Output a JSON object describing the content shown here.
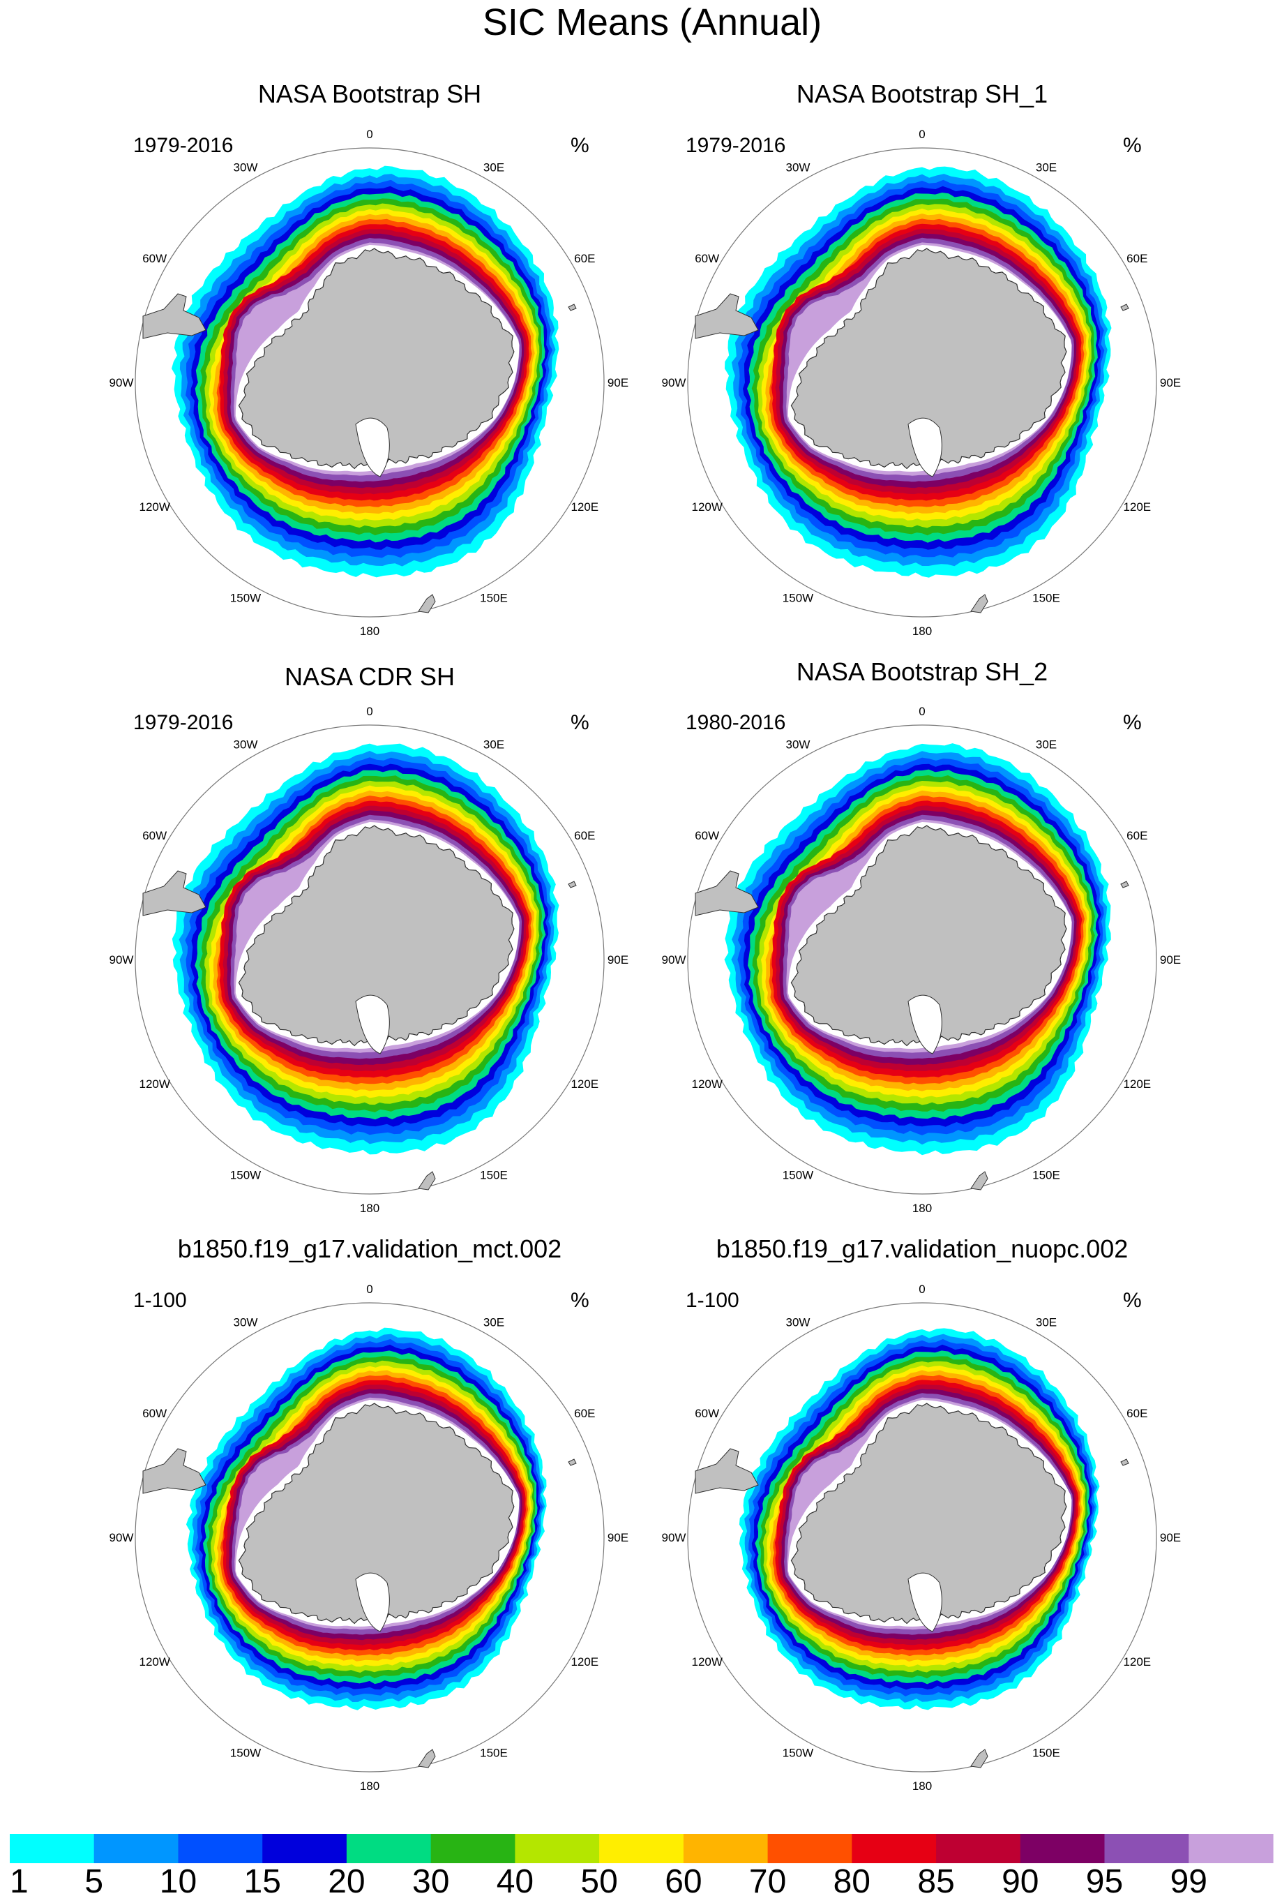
{
  "figure": {
    "title": "SIC Means (Annual)",
    "unit": "%"
  },
  "chart_data": {
    "type": "polar-contour-map",
    "projection": "south-polar-stereographic",
    "longitude_labels": [
      "0",
      "30E",
      "60E",
      "90E",
      "120E",
      "150E",
      "180",
      "150W",
      "120W",
      "90W",
      "60W",
      "30W"
    ],
    "panels": [
      {
        "title": "NASA Bootstrap SH",
        "period": "1979-2016",
        "unit": "%",
        "model": false,
        "variant": 0
      },
      {
        "title": "NASA Bootstrap SH_1",
        "period": "1979-2016",
        "unit": "%",
        "model": false,
        "variant": 1
      },
      {
        "title": "NASA CDR SH",
        "period": "1979-2016",
        "unit": "%",
        "model": false,
        "variant": 2
      },
      {
        "title": "NASA Bootstrap SH_2",
        "period": "1980-2016",
        "unit": "%",
        "model": false,
        "variant": 3
      },
      {
        "title": "b1850.f19_g17.validation_mct.002",
        "period": "1-100",
        "unit": "%",
        "model": true,
        "variant": 4
      },
      {
        "title": "b1850.f19_g17.validation_nuopc.002",
        "period": "1-100",
        "unit": "%",
        "model": true,
        "variant": 5
      }
    ],
    "colorbar": {
      "levels": [
        "1",
        "5",
        "10",
        "15",
        "20",
        "30",
        "40",
        "50",
        "60",
        "70",
        "80",
        "85",
        "90",
        "95",
        "99"
      ],
      "colors": [
        "#00ffff",
        "#0096ff",
        "#0050ff",
        "#0000dc",
        "#00dc82",
        "#28b414",
        "#b4e600",
        "#ffee00",
        "#ffb400",
        "#ff5000",
        "#e60014",
        "#be0032",
        "#7d0064",
        "#8c50b4",
        "#c8a0dc"
      ]
    },
    "land_color": "#c0c0c0"
  }
}
